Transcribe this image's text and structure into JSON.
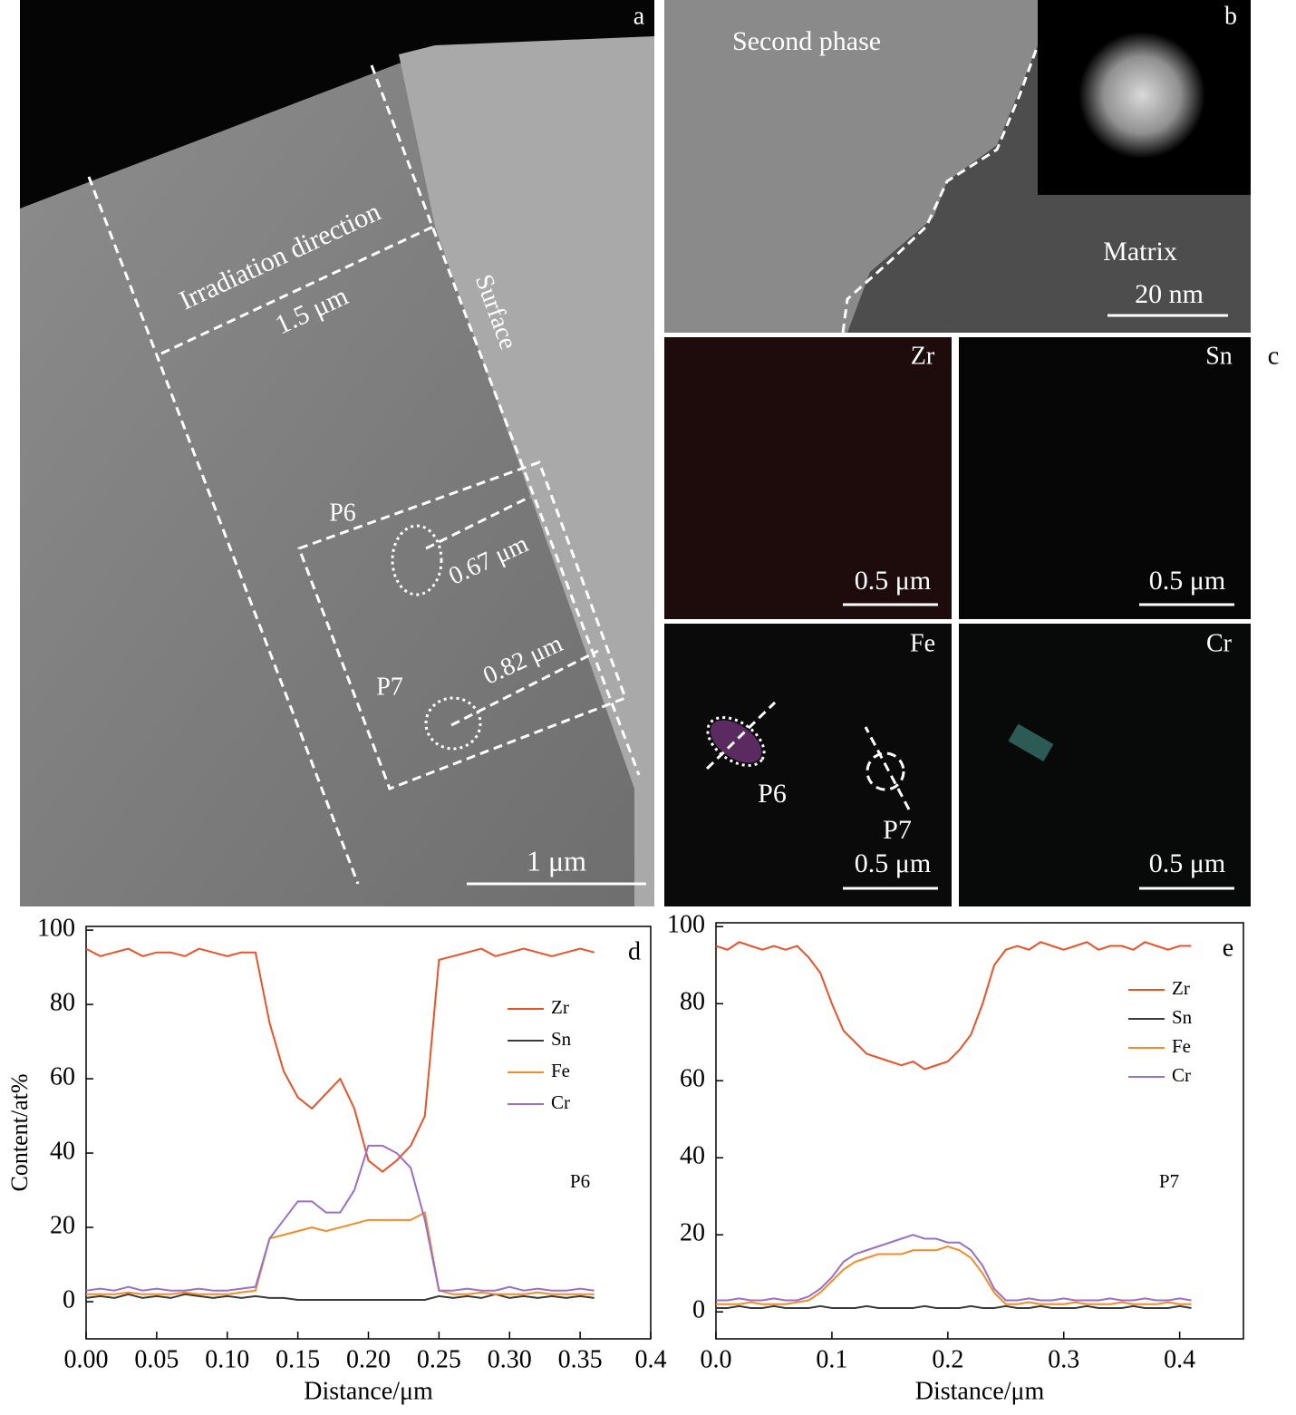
{
  "panels": {
    "a": {
      "letter": "a",
      "labels": [
        "Irradiation direction",
        "1.5 μm",
        "Surface",
        "P6",
        "0.67 μm",
        "P7",
        "0.82 μm"
      ],
      "scale": "1 μm"
    },
    "b": {
      "letter": "b",
      "labels": [
        "Second phase",
        "Matrix"
      ],
      "scale": "20 nm"
    },
    "c": {
      "letter": "c",
      "maps": [
        {
          "element": "Zr",
          "scale": "0.5 μm"
        },
        {
          "element": "Sn",
          "scale": "0.5 μm"
        },
        {
          "element": "Fe",
          "scale": "0.5 μm"
        },
        {
          "element": "Cr",
          "scale": "0.5 μm"
        }
      ],
      "fe_labels": [
        "P6",
        "P7"
      ]
    }
  },
  "chart_data": [
    {
      "type": "line",
      "letter": "d",
      "annotation": "P6",
      "ylabel": "Content/at%",
      "xlabel": "Distance/μm",
      "xlim": [
        0,
        0.4
      ],
      "ylim": [
        -10,
        101
      ],
      "xticks": [
        {
          "value": 0,
          "label": "0.00"
        },
        {
          "value": 0.05,
          "label": "0.05"
        },
        {
          "value": 0.1,
          "label": "0.10"
        },
        {
          "value": 0.15,
          "label": "0.15"
        },
        {
          "value": 0.2,
          "label": "0.20"
        },
        {
          "value": 0.25,
          "label": "0.25"
        },
        {
          "value": 0.3,
          "label": "0.30"
        },
        {
          "value": 0.35,
          "label": "0.35"
        },
        0.4
      ],
      "yticks": [
        0,
        20,
        40,
        60,
        80,
        100
      ],
      "x": [
        0,
        0.01,
        0.02,
        0.03,
        0.04,
        0.05,
        0.06,
        0.07,
        0.08,
        0.09,
        0.1,
        0.11,
        0.12,
        0.13,
        0.14,
        0.15,
        0.16,
        0.17,
        0.18,
        0.19,
        0.2,
        0.21,
        0.22,
        0.23,
        0.24,
        0.25,
        0.26,
        0.27,
        0.28,
        0.29,
        0.3,
        0.31,
        0.32,
        0.33,
        0.34,
        0.35,
        0.36
      ],
      "series": [
        {
          "name": "Zr",
          "color": "#e8532a",
          "values": [
            95,
            93,
            94,
            95,
            93,
            94,
            94,
            93,
            95,
            94,
            93,
            94,
            94,
            75,
            62,
            55,
            52,
            56,
            60,
            52,
            38,
            35,
            38,
            42,
            50,
            92,
            93,
            94,
            95,
            93,
            94,
            95,
            94,
            93,
            94,
            95,
            94
          ]
        },
        {
          "name": "Sn",
          "color": "#3a3a3a",
          "values": [
            1,
            1.5,
            1,
            2,
            1,
            1.5,
            1,
            2,
            1.5,
            1,
            1.5,
            1,
            1.5,
            1,
            1,
            0.5,
            0.5,
            0.5,
            0.5,
            0.5,
            0.5,
            0.5,
            0.5,
            0.5,
            0.5,
            1.5,
            1,
            1.5,
            1,
            2,
            1,
            1.5,
            1,
            1.5,
            1,
            1.5,
            1
          ]
        },
        {
          "name": "Fe",
          "color": "#f28c28",
          "values": [
            2,
            2,
            2,
            2.5,
            2,
            2,
            2,
            2.5,
            2,
            2,
            2,
            2.5,
            3,
            17,
            18,
            19,
            20,
            19,
            20,
            21,
            22,
            22,
            22,
            22,
            24,
            3,
            2,
            2,
            2.5,
            2,
            2,
            2,
            2.5,
            2,
            2,
            2,
            2
          ]
        },
        {
          "name": "Cr",
          "color": "#9b6fc4",
          "values": [
            3,
            3.5,
            3,
            4,
            3,
            3.5,
            3,
            3,
            3.5,
            3,
            3,
            3.5,
            4,
            17,
            22,
            27,
            27,
            24,
            24,
            30,
            42,
            42,
            40,
            36,
            22,
            3,
            3,
            3.5,
            3,
            3,
            4,
            3,
            3.5,
            3,
            3,
            3.5,
            3
          ]
        }
      ]
    },
    {
      "type": "line",
      "letter": "e",
      "annotation": "P7",
      "xlabel": "Distance/μm",
      "xlim": [
        0,
        0.455
      ],
      "ylim": [
        -7,
        101
      ],
      "xticks": [
        {
          "value": 0,
          "label": "0.0"
        },
        0.1,
        0.2,
        0.3,
        0.4
      ],
      "yticks": [
        0,
        20,
        40,
        60,
        80,
        100
      ],
      "x": [
        0,
        0.01,
        0.02,
        0.03,
        0.04,
        0.05,
        0.06,
        0.07,
        0.08,
        0.09,
        0.1,
        0.11,
        0.12,
        0.13,
        0.14,
        0.15,
        0.16,
        0.17,
        0.18,
        0.19,
        0.2,
        0.21,
        0.22,
        0.23,
        0.24,
        0.25,
        0.26,
        0.27,
        0.28,
        0.29,
        0.3,
        0.31,
        0.32,
        0.33,
        0.34,
        0.35,
        0.36,
        0.37,
        0.38,
        0.39,
        0.4,
        0.41
      ],
      "series": [
        {
          "name": "Zr",
          "color": "#e8532a",
          "values": [
            95,
            94,
            96,
            95,
            94,
            95,
            94,
            95,
            92,
            88,
            80,
            73,
            70,
            67,
            66,
            65,
            64,
            65,
            63,
            64,
            65,
            68,
            72,
            80,
            90,
            94,
            95,
            94,
            96,
            95,
            94,
            95,
            96,
            94,
            95,
            95,
            94,
            96,
            95,
            94,
            95,
            95
          ]
        },
        {
          "name": "Sn",
          "color": "#3a3a3a",
          "values": [
            1,
            1,
            1.5,
            1,
            1,
            1.5,
            1,
            1,
            1,
            1.5,
            1,
            1,
            1,
            1.5,
            1,
            1,
            1,
            1,
            1.5,
            1,
            1,
            1,
            1.5,
            1,
            1,
            1.5,
            1,
            1,
            1.5,
            1,
            1,
            1,
            1.5,
            1,
            1,
            1,
            1.5,
            1,
            1,
            1,
            1.5,
            1
          ]
        },
        {
          "name": "Fe",
          "color": "#f28c28",
          "values": [
            2,
            2,
            2,
            2.5,
            2,
            2,
            2,
            2.5,
            3,
            5,
            8,
            11,
            13,
            14,
            15,
            15,
            15,
            16,
            16,
            16,
            17,
            16,
            14,
            10,
            5,
            2,
            2,
            2.5,
            2,
            2,
            2,
            2.5,
            2,
            2,
            2,
            2.5,
            2,
            2,
            2,
            2.5,
            2,
            2
          ]
        },
        {
          "name": "Cr",
          "color": "#9b6fc4",
          "values": [
            3,
            3,
            3.5,
            3,
            3,
            3.5,
            3,
            3,
            4,
            6,
            9,
            13,
            15,
            16,
            17,
            18,
            19,
            20,
            19,
            19,
            18,
            18,
            16,
            12,
            6,
            3,
            3,
            3.5,
            3,
            3,
            3.5,
            3,
            3,
            3,
            3.5,
            3,
            3,
            3.5,
            3,
            3,
            3.5,
            3
          ]
        }
      ]
    }
  ]
}
